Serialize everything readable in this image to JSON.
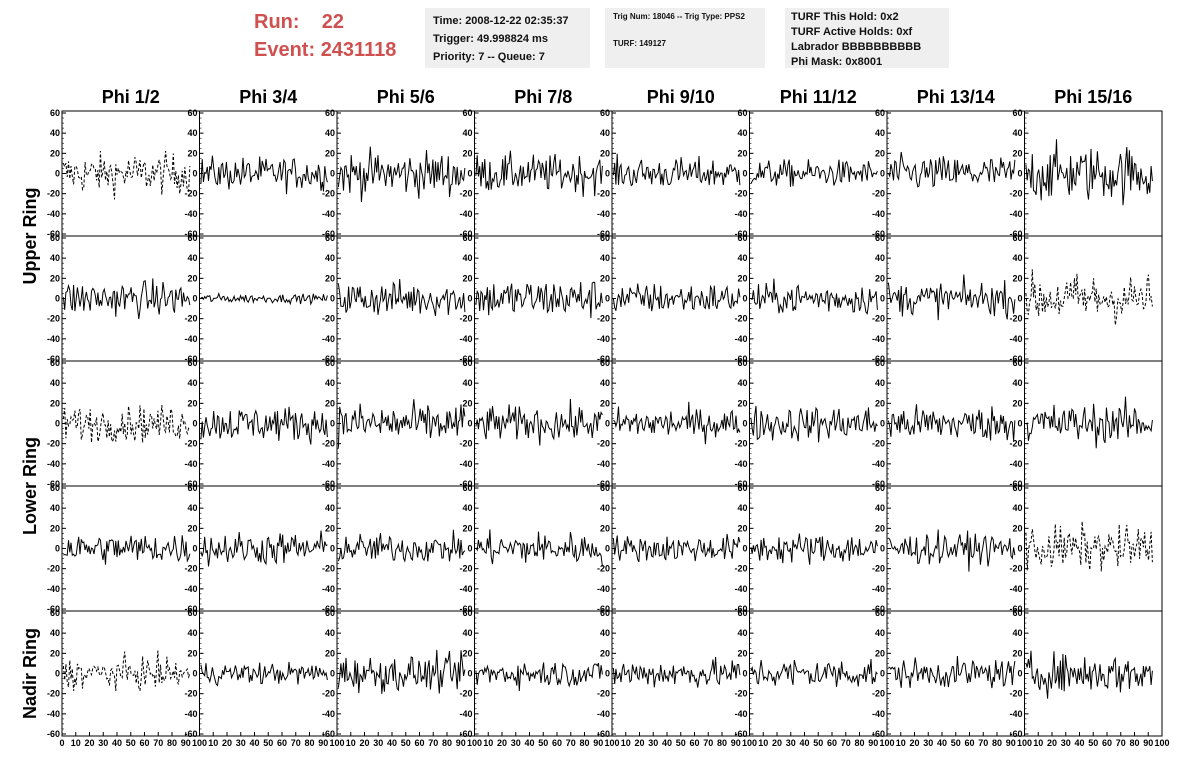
{
  "header": {
    "run_label": "Run:",
    "run_value": "22",
    "event_label": "Event:",
    "event_value": "2431118",
    "info1": [
      "Time: 2008-12-22 02:35:37",
      "Trigger: 49.998824 ms",
      "Priority: 7 -- Queue: 7"
    ],
    "info2_line1": "Trig Num: 18046 -- Trig Type: PPS2",
    "info2_line2": "TURF: 149127",
    "info3": [
      "TURF This Hold: 0x2",
      "TURF Active Holds: 0xf",
      "Labrador BBBBBBBBBB",
      "Phi Mask: 0x8001"
    ]
  },
  "colors": {
    "title_red": "#d05050",
    "info_bg": "#efefef"
  },
  "chart_data": {
    "type": "line",
    "layout": "5x8 grid of waveform panels",
    "column_titles": [
      "Phi 1/2",
      "Phi 3/4",
      "Phi 5/6",
      "Phi 7/8",
      "Phi 9/10",
      "Phi 11/12",
      "Phi 13/14",
      "Phi 15/16"
    ],
    "row_titles": [
      {
        "label": "Upper Ring",
        "rows": [
          0,
          1
        ]
      },
      {
        "label": "Lower Ring",
        "rows": [
          2,
          3
        ]
      },
      {
        "label": "Nadir Ring",
        "rows": [
          4
        ]
      }
    ],
    "ylim": [
      -60,
      60
    ],
    "y_ticks": [
      -60,
      -40,
      -20,
      0,
      20,
      40,
      60
    ],
    "xlim": [
      0,
      100
    ],
    "x_ticks": [
      0,
      10,
      20,
      30,
      40,
      50,
      60,
      70,
      80,
      90,
      100
    ],
    "n_samples": 100,
    "panels_style": [
      [
        "dashed",
        "solid",
        "solid",
        "solid",
        "solid",
        "solid",
        "solid",
        "solid"
      ],
      [
        "solid",
        "solid",
        "solid",
        "solid",
        "solid",
        "solid",
        "solid",
        "dashed"
      ],
      [
        "dashed",
        "solid",
        "solid",
        "solid",
        "solid",
        "solid",
        "solid",
        "solid"
      ],
      [
        "solid",
        "solid",
        "solid",
        "solid",
        "solid",
        "solid",
        "solid",
        "dashed"
      ],
      [
        "dashed",
        "solid",
        "solid",
        "solid",
        "solid",
        "solid",
        "solid",
        "solid"
      ]
    ],
    "panels_amplitude": [
      [
        18,
        15,
        20,
        17,
        14,
        12,
        16,
        25
      ],
      [
        16,
        4,
        16,
        18,
        14,
        14,
        15,
        22
      ],
      [
        16,
        16,
        18,
        16,
        14,
        16,
        16,
        18
      ],
      [
        14,
        15,
        13,
        15,
        12,
        14,
        14,
        20
      ],
      [
        14,
        10,
        16,
        12,
        13,
        14,
        13,
        18
      ]
    ]
  }
}
